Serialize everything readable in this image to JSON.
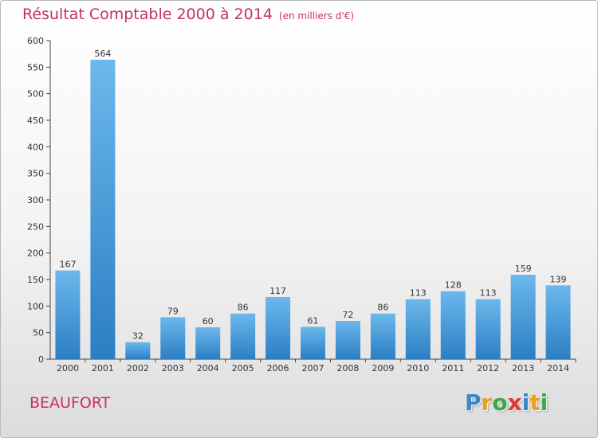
{
  "header": {
    "title": "Résultat Comptable 2000 à 2014",
    "subtitle": "(en milliers d'€)"
  },
  "footer": {
    "city": "BEAUFORT",
    "logo_letters": [
      "P",
      "r",
      "o",
      "x",
      "i",
      "t",
      "i"
    ],
    "logo_colors": [
      "#3a86c8",
      "#e8a020",
      "#3aa84a",
      "#d83a3a",
      "#3a86c8",
      "#e8a020",
      "#3aa84a"
    ]
  },
  "colors": {
    "bar_light": "#6cb8ec",
    "bar_dark": "#2c7ec4",
    "accent": "#c8305a"
  },
  "chart_data": {
    "type": "bar",
    "title": "Résultat Comptable 2000 à 2014",
    "subtitle": "(en milliers d'€)",
    "xlabel": "",
    "ylabel": "",
    "categories": [
      "2000",
      "2001",
      "2002",
      "2003",
      "2004",
      "2005",
      "2006",
      "2007",
      "2008",
      "2009",
      "2010",
      "2011",
      "2012",
      "2013",
      "2014"
    ],
    "values": [
      167,
      564,
      32,
      79,
      60,
      86,
      117,
      61,
      72,
      86,
      113,
      128,
      113,
      159,
      139
    ],
    "ylim": [
      0,
      600
    ],
    "yticks": [
      0,
      50,
      100,
      150,
      200,
      250,
      300,
      350,
      400,
      450,
      500,
      550,
      600
    ],
    "grid": false,
    "legend": "none"
  }
}
